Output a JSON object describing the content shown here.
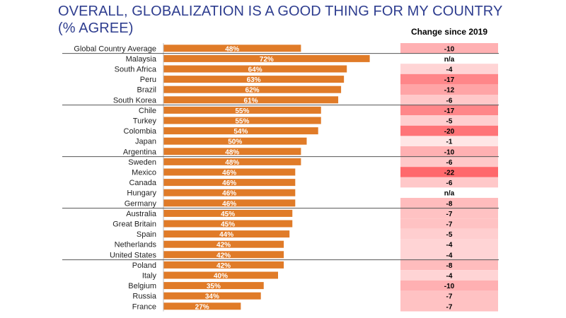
{
  "chart_data": {
    "type": "bar",
    "orientation": "horizontal",
    "title": "OVERALL, GLOBALIZATION IS A GOOD THING FOR MY COUNTRY",
    "subtitle": "(% AGREE)",
    "change_header": "Change since 2019",
    "bar_color": "#e07b28",
    "categories": [
      "Global Country Average",
      "Malaysia",
      "South Africa",
      "Peru",
      "Brazil",
      "South Korea",
      "Chile",
      "Turkey",
      "Colombia",
      "Japan",
      "Argentina",
      "Sweden",
      "Mexico",
      "Canada",
      "Hungary",
      "Germany",
      "Australia",
      "Great Britain",
      "Spain",
      "Netherlands",
      "United States",
      "Poland",
      "Italy",
      "Belgium",
      "Russia",
      "France"
    ],
    "values": [
      48,
      72,
      64,
      63,
      62,
      61,
      55,
      55,
      54,
      50,
      48,
      48,
      46,
      46,
      46,
      46,
      45,
      45,
      44,
      42,
      42,
      42,
      40,
      35,
      34,
      27
    ],
    "value_labels": [
      "48%",
      "72%",
      "64%",
      "63%",
      "62%",
      "61%",
      "55%",
      "55%",
      "54%",
      "50%",
      "48%",
      "48%",
      "46%",
      "46%",
      "46%",
      "46%",
      "45%",
      "45%",
      "44%",
      "42%",
      "42%",
      "42%",
      "40%",
      "35%",
      "34%",
      "27%"
    ],
    "change_labels": [
      "-10",
      "n/a",
      "-4",
      "-17",
      "-12",
      "-6",
      "-17",
      "-5",
      "-20",
      "-1",
      "-10",
      "-6",
      "-22",
      "-6",
      "n/a",
      "-8",
      "-7",
      "-7",
      "-5",
      "-4",
      "-4",
      "-8",
      "-4",
      "-10",
      "-7",
      "-7"
    ],
    "change_values": [
      -10,
      null,
      -4,
      -17,
      -12,
      -6,
      -17,
      -5,
      -20,
      -1,
      -10,
      -6,
      -22,
      -6,
      null,
      -8,
      -7,
      -7,
      -5,
      -4,
      -4,
      -8,
      -4,
      -10,
      -7,
      -7
    ],
    "group_separators_after": [
      "Global Country Average",
      "South Korea",
      "Argentina",
      "Germany",
      "United States"
    ],
    "xlim": [
      0,
      100
    ]
  }
}
